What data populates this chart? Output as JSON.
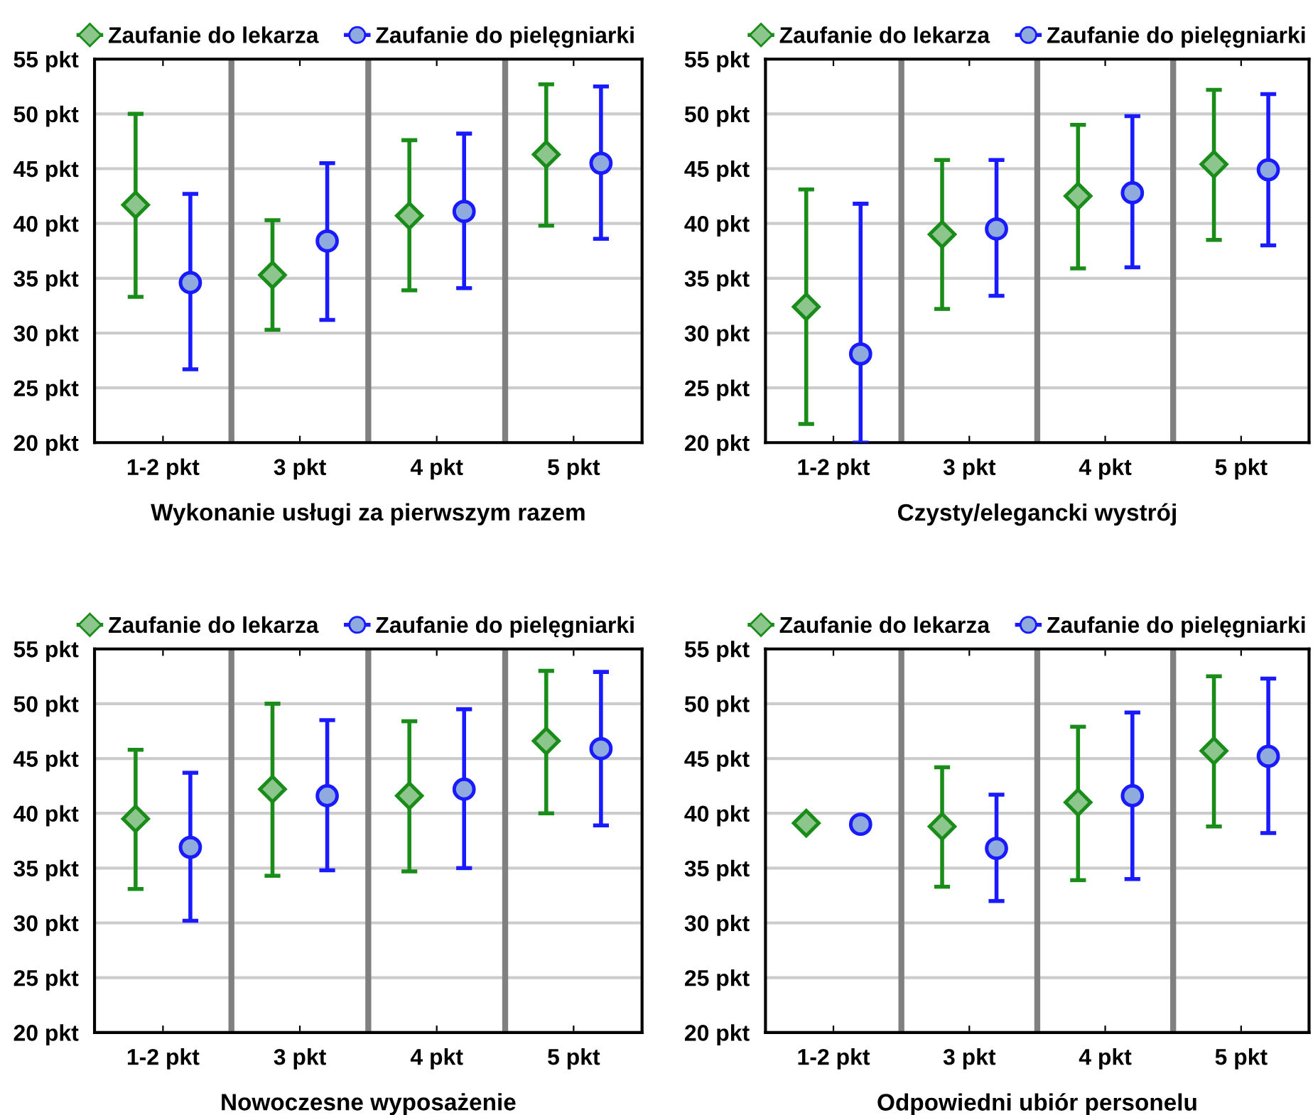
{
  "chart_data": [
    {
      "type": "scatter",
      "xlabel": "Wykonanie usługi za pierwszym razem",
      "categories": [
        "1-2 pkt",
        "3 pkt",
        "4 pkt",
        "5 pkt"
      ],
      "ylim": [
        20,
        55
      ],
      "yticks": [
        {
          "value": 20,
          "label": "20 pkt"
        },
        {
          "value": 25,
          "label": "25 pkt"
        },
        {
          "value": 30,
          "label": "30 pkt"
        },
        {
          "value": 35,
          "label": "35 pkt"
        },
        {
          "value": 40,
          "label": "40 pkt"
        },
        {
          "value": 45,
          "label": "45 pkt"
        },
        {
          "value": 50,
          "label": "50 pkt"
        },
        {
          "value": 55,
          "label": "55 pkt"
        }
      ],
      "grid": true,
      "legend": "top",
      "series": [
        {
          "name": "Zaufanie do lekarza",
          "color": "#1a8c1a",
          "marker": "diamond",
          "values": [
            41.7,
            35.3,
            40.7,
            46.3
          ],
          "errors": [
            [
              33.3,
              50.0
            ],
            [
              30.3,
              40.3
            ],
            [
              33.9,
              47.6
            ],
            [
              39.8,
              52.7
            ]
          ]
        },
        {
          "name": "Zaufanie do pielęgniarki",
          "color": "#1a1aff",
          "marker": "circle",
          "values": [
            34.6,
            38.4,
            41.1,
            45.5
          ],
          "errors": [
            [
              26.7,
              42.7
            ],
            [
              31.2,
              45.5
            ],
            [
              34.1,
              48.2
            ],
            [
              38.6,
              52.5
            ]
          ]
        }
      ]
    },
    {
      "type": "scatter",
      "xlabel": "Czysty/elegancki wystrój",
      "categories": [
        "1-2 pkt",
        "3 pkt",
        "4 pkt",
        "5 pkt"
      ],
      "ylim": [
        20,
        55
      ],
      "yticks": [
        {
          "value": 20,
          "label": "20 pkt"
        },
        {
          "value": 25,
          "label": "25 pkt"
        },
        {
          "value": 30,
          "label": "30 pkt"
        },
        {
          "value": 35,
          "label": "35 pkt"
        },
        {
          "value": 40,
          "label": "40 pkt"
        },
        {
          "value": 45,
          "label": "45 pkt"
        },
        {
          "value": 50,
          "label": "50 pkt"
        },
        {
          "value": 55,
          "label": "55 pkt"
        }
      ],
      "grid": true,
      "legend": "top",
      "series": [
        {
          "name": "Zaufanie do lekarza",
          "color": "#1a8c1a",
          "marker": "diamond",
          "values": [
            32.4,
            39.0,
            42.5,
            45.4
          ],
          "errors": [
            [
              21.7,
              43.1
            ],
            [
              32.2,
              45.8
            ],
            [
              35.9,
              49.0
            ],
            [
              38.5,
              52.2
            ]
          ]
        },
        {
          "name": "Zaufanie do pielęgniarki",
          "color": "#1a1aff",
          "marker": "circle",
          "values": [
            28.1,
            39.5,
            42.8,
            44.9
          ],
          "errors": [
            [
              20,
              41.8
            ],
            [
              33.4,
              45.8
            ],
            [
              36.0,
              49.8
            ],
            [
              38.0,
              51.8
            ]
          ]
        }
      ]
    },
    {
      "type": "scatter",
      "xlabel": "Nowoczesne wyposażenie",
      "categories": [
        "1-2 pkt",
        "3 pkt",
        "4 pkt",
        "5 pkt"
      ],
      "ylim": [
        20,
        55
      ],
      "yticks": [
        {
          "value": 20,
          "label": "20 pkt"
        },
        {
          "value": 25,
          "label": "25 pkt"
        },
        {
          "value": 30,
          "label": "30 pkt"
        },
        {
          "value": 35,
          "label": "35 pkt"
        },
        {
          "value": 40,
          "label": "40 pkt"
        },
        {
          "value": 45,
          "label": "45 pkt"
        },
        {
          "value": 50,
          "label": "50 pkt"
        },
        {
          "value": 55,
          "label": "55 pkt"
        }
      ],
      "grid": true,
      "legend": "top",
      "series": [
        {
          "name": "Zaufanie do lekarza",
          "color": "#1a8c1a",
          "marker": "diamond",
          "values": [
            39.5,
            42.2,
            41.6,
            46.6
          ],
          "errors": [
            [
              33.1,
              45.8
            ],
            [
              34.3,
              50.0
            ],
            [
              34.7,
              48.4
            ],
            [
              40.0,
              53.0
            ]
          ]
        },
        {
          "name": "Zaufanie do pielęgniarki",
          "color": "#1a1aff",
          "marker": "circle",
          "values": [
            36.9,
            41.6,
            42.2,
            45.9
          ],
          "errors": [
            [
              30.2,
              43.7
            ],
            [
              34.8,
              48.5
            ],
            [
              35.0,
              49.5
            ],
            [
              38.9,
              52.9
            ]
          ]
        }
      ]
    },
    {
      "type": "scatter",
      "xlabel": "Odpowiedni ubiór personelu",
      "categories": [
        "1-2 pkt",
        "3 pkt",
        "4 pkt",
        "5 pkt"
      ],
      "ylim": [
        20,
        55
      ],
      "yticks": [
        {
          "value": 20,
          "label": "20 pkt"
        },
        {
          "value": 25,
          "label": "25 pkt"
        },
        {
          "value": 30,
          "label": "30 pkt"
        },
        {
          "value": 35,
          "label": "35 pkt"
        },
        {
          "value": 40,
          "label": "40 pkt"
        },
        {
          "value": 45,
          "label": "45 pkt"
        },
        {
          "value": 50,
          "label": "50 pkt"
        },
        {
          "value": 55,
          "label": "55 pkt"
        }
      ],
      "grid": true,
      "legend": "top",
      "series": [
        {
          "name": "Zaufanie do lekarza",
          "color": "#1a8c1a",
          "marker": "diamond",
          "values": [
            39.1,
            38.8,
            41.0,
            45.7
          ],
          "errors": [
            null,
            [
              33.3,
              44.2
            ],
            [
              33.9,
              47.9
            ],
            [
              38.8,
              52.5
            ]
          ]
        },
        {
          "name": "Zaufanie do pielęgniarki",
          "color": "#1a1aff",
          "marker": "circle",
          "values": [
            39.0,
            36.8,
            41.6,
            45.2
          ],
          "errors": [
            null,
            [
              32.0,
              41.7
            ],
            [
              34.0,
              49.2
            ],
            [
              38.2,
              52.3
            ]
          ]
        }
      ]
    }
  ]
}
